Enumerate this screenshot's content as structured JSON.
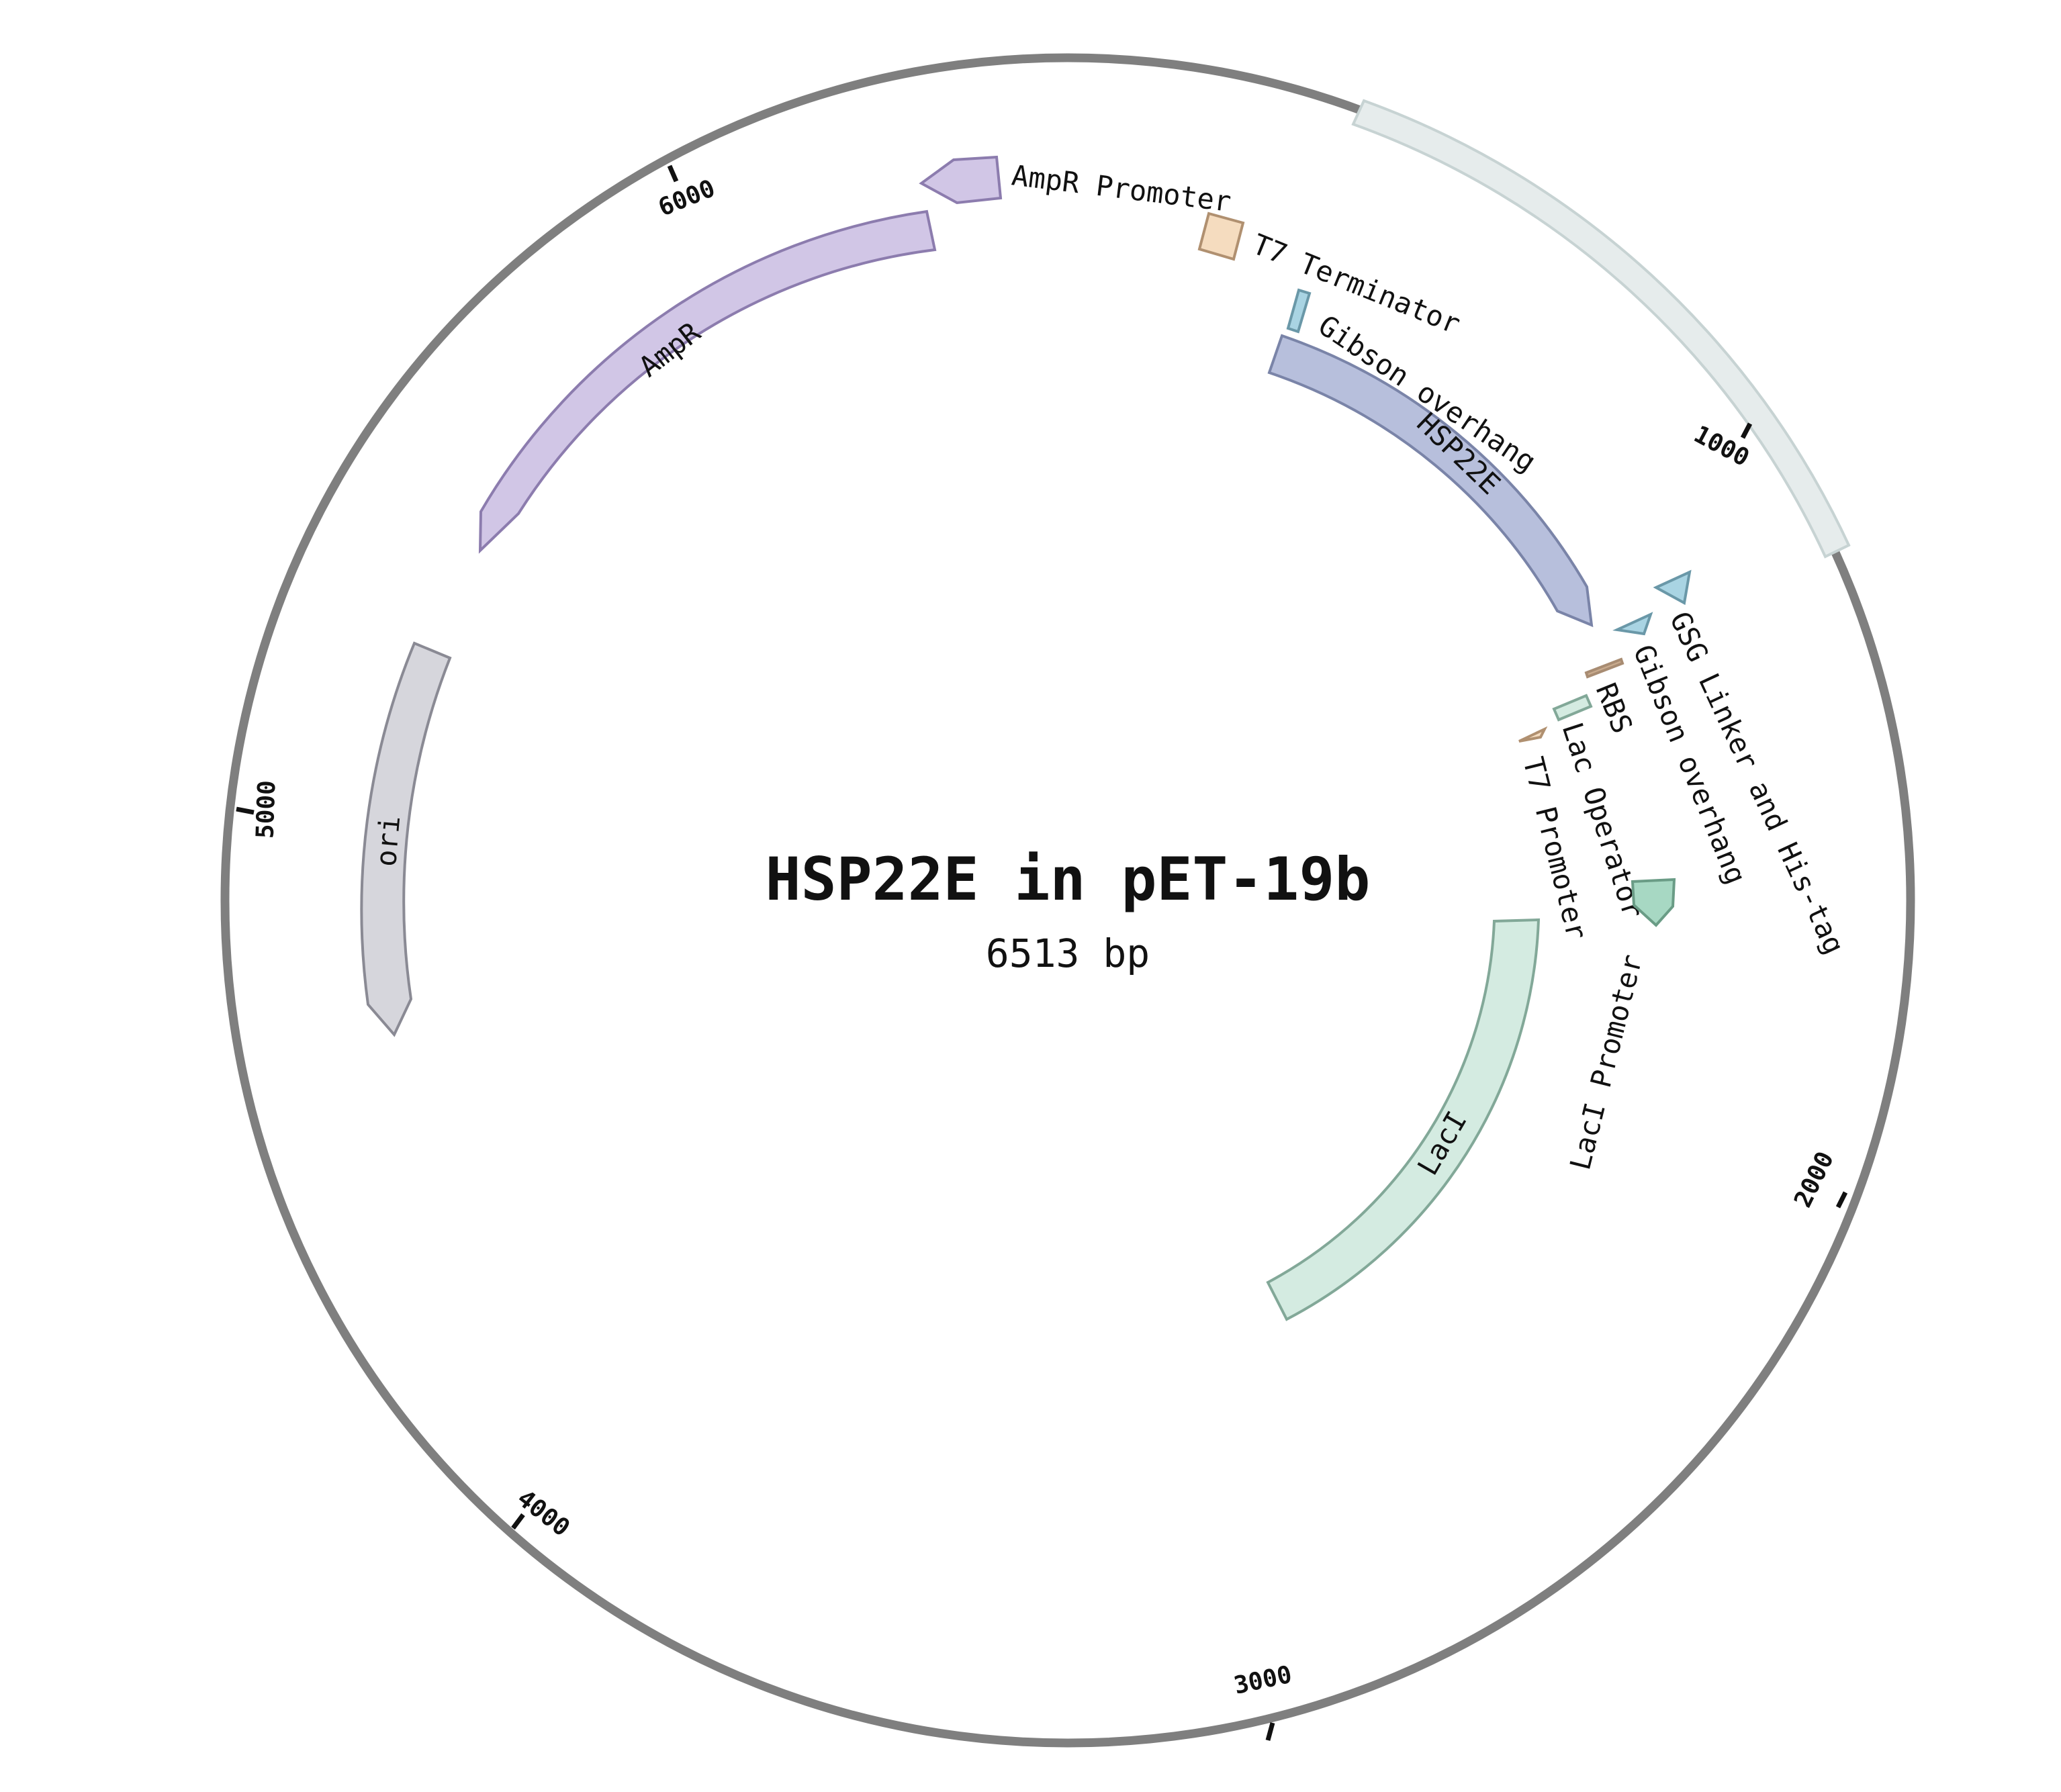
{
  "title": "HSP22E in pET-19b",
  "length_label": "6513 bp",
  "length_bp": 6513,
  "backbone_color": "#7f7f7f",
  "ticks": [
    "1000",
    "2000",
    "3000",
    "4000",
    "5000",
    "6000"
  ],
  "features": [
    {
      "id": "highlight",
      "label": "",
      "start": 445,
      "end": 1150,
      "color": "#e6ecec",
      "stroke": "#c7d3d3"
    },
    {
      "id": "hsp22e",
      "label": "HSP22E",
      "start": 223,
      "end": 956,
      "color": "#b7bfdc",
      "stroke": "#7a84a8"
    },
    {
      "id": "laci",
      "label": "LacI",
      "start": 1640,
      "end": 2719,
      "color": "#d4ebe1",
      "stroke": "#82a898"
    },
    {
      "id": "ori",
      "label": "ori",
      "start": 4398,
      "end": 4986,
      "color": "#d6d6dc",
      "stroke": "#8a8a94"
    },
    {
      "id": "ampr",
      "label": "AmpR",
      "start": 5367,
      "end": 6184,
      "color": "#d1c6e6",
      "stroke": "#8c7cae"
    },
    {
      "id": "ampr-promoter",
      "label": "AmpR Promoter",
      "start": 6223,
      "end": 6328,
      "color": "#d1c6e6",
      "stroke": "#8c7cae"
    },
    {
      "id": "t7-terminator",
      "label": "T7 Terminator",
      "start": 43,
      "end": 88,
      "color": "#f5dcbf",
      "stroke": "#b09070"
    },
    {
      "id": "gibson-overhang-1",
      "label": "Gibson overhang",
      "start": 160,
      "end": 180,
      "color": "#a9d4e3",
      "stroke": "#6a98a8"
    },
    {
      "id": "gsg-linker",
      "label": "GSG Linker and His-tag",
      "start": 1005,
      "end": 1053,
      "color": "#a9d4e3",
      "stroke": "#6a98a8"
    },
    {
      "id": "gibson-overhang-2",
      "label": "Gibson overhang",
      "start": 1013,
      "end": 1053,
      "color": "#a9d4e3",
      "stroke": "#6a98a8"
    },
    {
      "id": "rbs",
      "label": "RBS",
      "start": 1063,
      "end": 1082,
      "color": "#c9ab8e",
      "stroke": "#a88c72"
    },
    {
      "id": "lac-operator",
      "label": "Lac Operator",
      "start": 1113,
      "end": 1138,
      "color": "#d4ebe1",
      "stroke": "#82a898"
    },
    {
      "id": "t7-promoter",
      "label": "T7 Promoter",
      "start": 1153,
      "end": 1172,
      "color": "#f5dcbf",
      "stroke": "#b09070"
    },
    {
      "id": "laci-promoter",
      "label": "LacI Promoter",
      "start": 1325,
      "end": 1402,
      "color": "#a7d8c3",
      "stroke": "#6a9c86"
    }
  ]
}
